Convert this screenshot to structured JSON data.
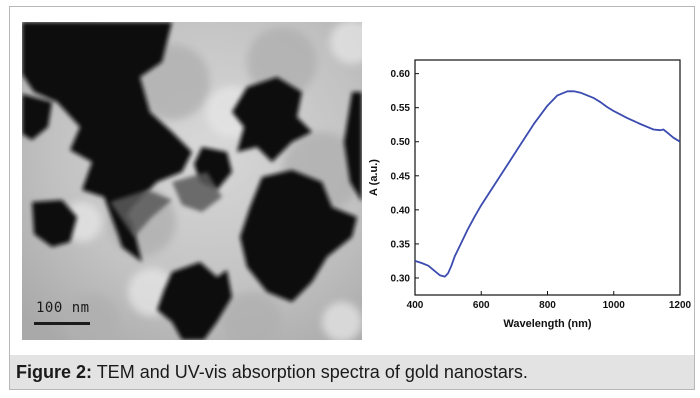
{
  "figure": {
    "caption_label": "Figure 2:",
    "caption_text": " TEM and UV-vis absorption spectra of gold nanostars.",
    "scale_bar_text": "100 nm"
  },
  "chart_data": {
    "type": "line",
    "xlabel": "Wavelength (nm)",
    "ylabel": "A (a.u.)",
    "xlim": [
      400,
      1200
    ],
    "ylim": [
      0.275,
      0.62
    ],
    "xticks": [
      400,
      600,
      800,
      1000,
      1200
    ],
    "yticks": [
      0.3,
      0.35,
      0.4,
      0.45,
      0.5,
      0.55,
      0.6
    ],
    "ytick_labels": [
      "0.30",
      "0.35",
      "0.40",
      "0.45",
      "0.50",
      "0.55",
      "0.60"
    ],
    "grid": false,
    "line_color": "#3b4bb0",
    "series": [
      {
        "x": [
          400,
          420,
          440,
          460,
          475,
          490,
          500,
          510,
          520,
          540,
          560,
          580,
          600,
          640,
          680,
          720,
          760,
          800,
          830,
          860,
          880,
          900,
          920,
          940,
          960,
          980,
          1000,
          1040,
          1080,
          1120,
          1140,
          1150,
          1160,
          1180,
          1200
        ],
        "y": [
          0.325,
          0.322,
          0.318,
          0.31,
          0.304,
          0.302,
          0.307,
          0.318,
          0.332,
          0.352,
          0.372,
          0.39,
          0.407,
          0.437,
          0.467,
          0.497,
          0.527,
          0.553,
          0.568,
          0.574,
          0.574,
          0.572,
          0.568,
          0.564,
          0.558,
          0.551,
          0.545,
          0.535,
          0.526,
          0.518,
          0.517,
          0.518,
          0.514,
          0.506,
          0.5
        ]
      }
    ]
  }
}
